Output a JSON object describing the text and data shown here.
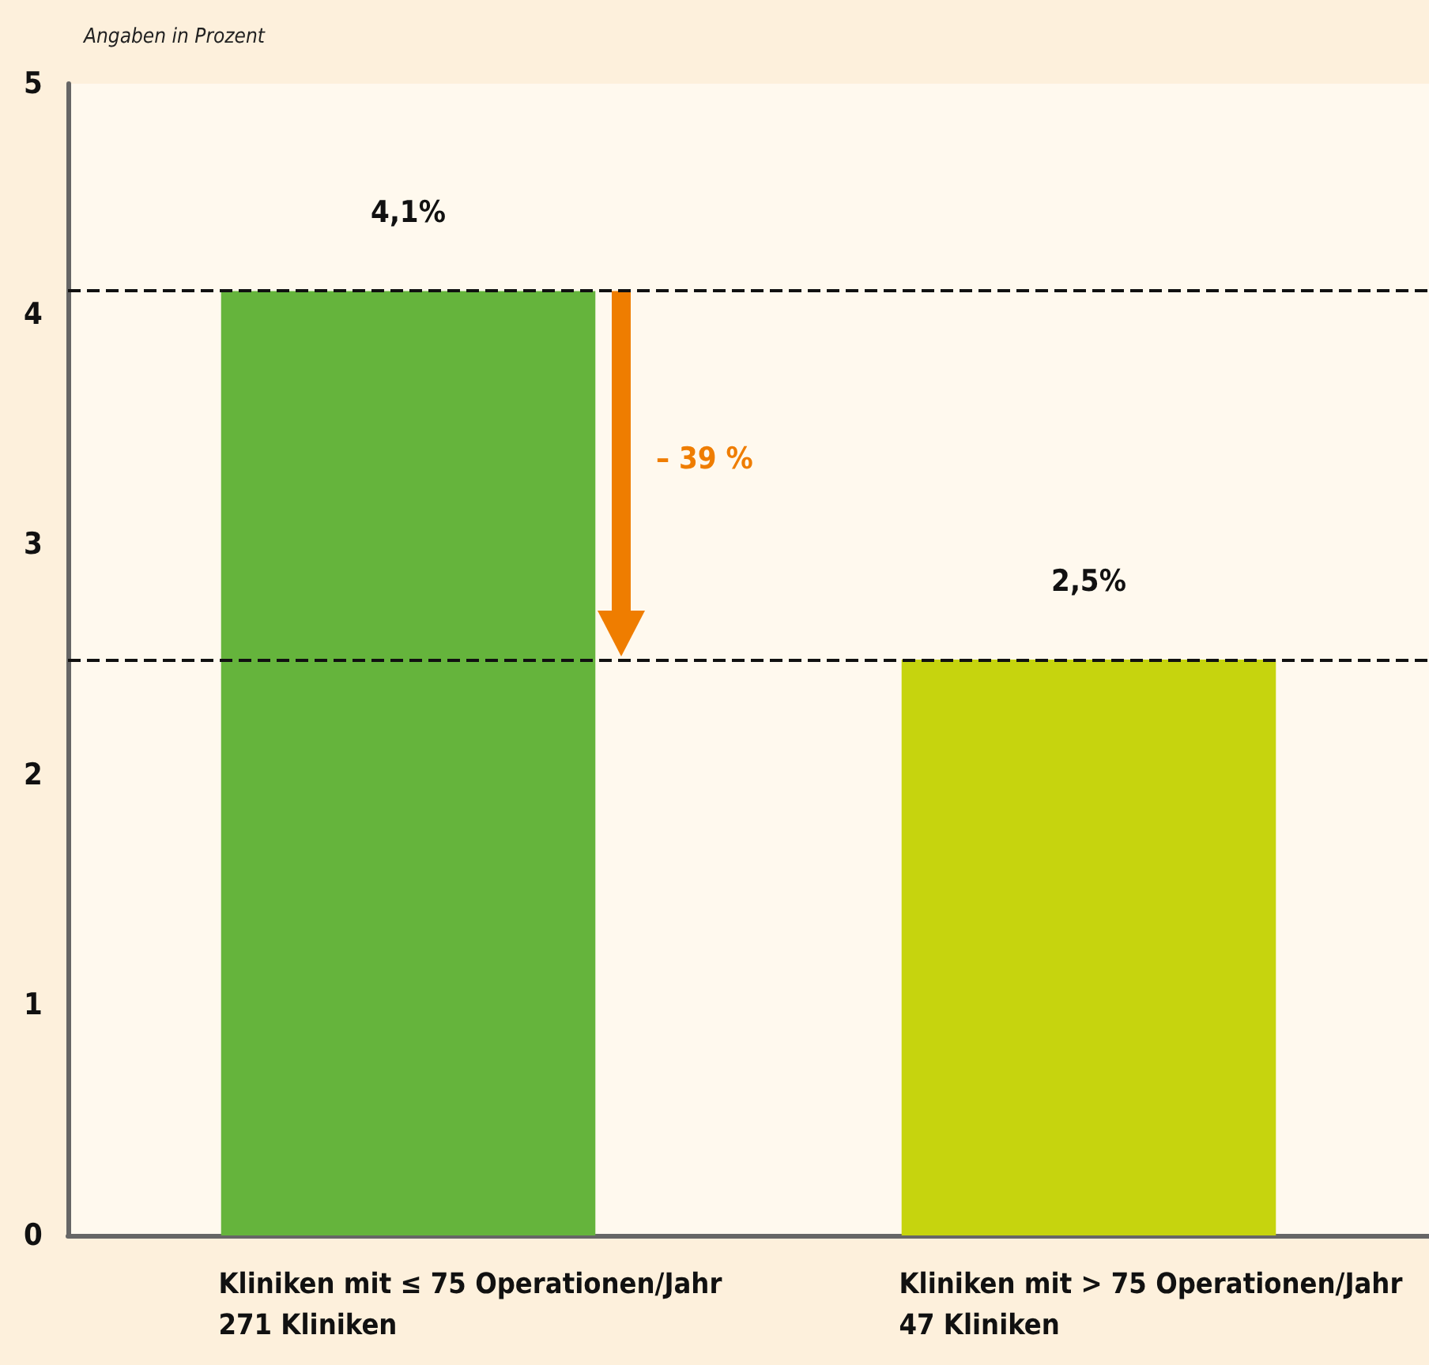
{
  "chart_data": {
    "type": "bar",
    "ylabel": "Angaben in Prozent",
    "categories": [
      "Kliniken mit ≤ 75 Operationen/Jahr\n271 Kliniken",
      "Kliniken mit > 75 Operationen/Jahr\n47 Kliniken"
    ],
    "values": [
      4.1,
      2.5
    ],
    "colors": [
      "#65b43c",
      "#c6d40e"
    ],
    "value_labels": [
      "4,1%",
      "2,5%"
    ],
    "ylim": [
      0,
      5
    ],
    "yticks": [
      0,
      1,
      2,
      3,
      4,
      5
    ],
    "grid": false,
    "ref_lines": [
      {
        "axis": "y",
        "value": 4.1,
        "line_style": "dashed",
        "color": "#111111"
      },
      {
        "axis": "y",
        "value": 2.5,
        "line_style": "dashed",
        "color": "#111111"
      }
    ],
    "annotations": [
      "– 39 %"
    ]
  }
}
